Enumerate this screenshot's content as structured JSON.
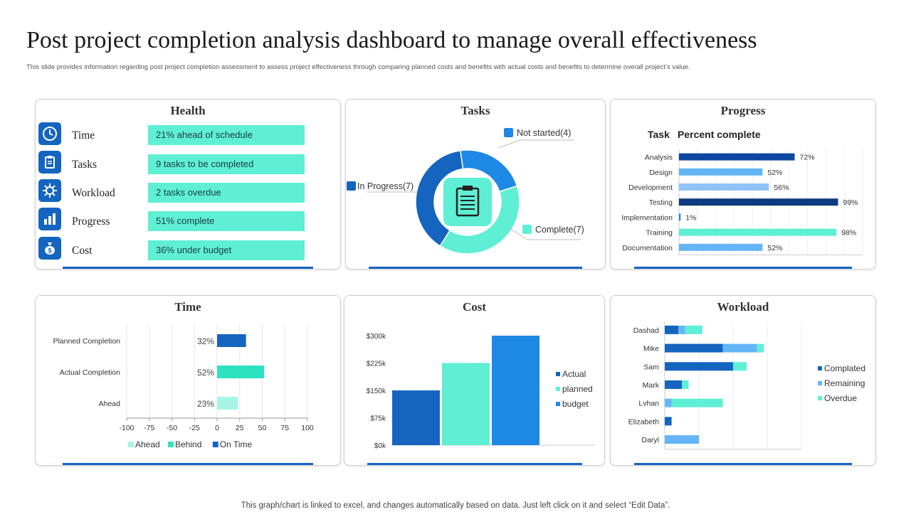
{
  "page": {
    "title": "Post project completion analysis dashboard to manage overall effectiveness",
    "subtitle": "This slide provides information regarding post project completion  assessment to assess project effectiveness through comparing planned costs and benefits with actual costs and benefits  to determine  overall project’s value.",
    "footer": "This graph/chart is linked to excel,  and changes automatically based on data. Just left click on it and select “Edit Data”."
  },
  "health": {
    "title": "Health",
    "items": [
      {
        "label": "Time",
        "value": "21% ahead of schedule",
        "icon": "clock-icon"
      },
      {
        "label": "Tasks",
        "value": "9 tasks to be completed",
        "icon": "clipboard-icon"
      },
      {
        "label": "Workload",
        "value": "2 tasks overdue",
        "icon": "gear-icon"
      },
      {
        "label": "Progress",
        "value": "51% complete",
        "icon": "bar-chart-icon"
      },
      {
        "label": "Cost",
        "value": "36% under  budget",
        "icon": "money-bag-icon"
      }
    ]
  },
  "colors": {
    "dark_blue": "#0d47a1",
    "blue": "#1565c0",
    "mid_blue": "#1e88e5",
    "light_blue": "#64b5f6",
    "teal": "#5eefd4",
    "light_teal": "#a6f5e4",
    "mint": "#2de2c1"
  },
  "chart_data": [
    {
      "id": "tasks",
      "type": "pie",
      "title": "Tasks",
      "categories": [
        "Not started",
        "In Progress",
        "Complete"
      ],
      "values": [
        4,
        7,
        7
      ],
      "labels": [
        "Not started(4)",
        "In Progress(7)",
        "Complete(7)"
      ],
      "colors": [
        "#1e88e5",
        "#1565c0",
        "#5eefd4"
      ]
    },
    {
      "id": "progress",
      "type": "bar",
      "orientation": "horizontal",
      "title": "Progress",
      "header_task": "Task",
      "header_percent": "Percent complete",
      "categories": [
        "Analysis",
        "Design",
        "Development",
        "Testing",
        "Implementation",
        "Training",
        "Documentation"
      ],
      "values": [
        72,
        52,
        56,
        99,
        1,
        98,
        52
      ],
      "value_labels": [
        "72%",
        "52%",
        "56%",
        "99%",
        "1%",
        "98%",
        "52%"
      ],
      "colors": [
        "#0d47a1",
        "#64b5f6",
        "#90c4f8",
        "#0d3a80",
        "#1e88e5",
        "#5eefd4",
        "#64b5f6"
      ],
      "xlim": [
        0,
        100
      ]
    },
    {
      "id": "time",
      "type": "bar",
      "orientation": "horizontal",
      "title": "Time",
      "categories": [
        "Planned Completion",
        "Actual Completion",
        "Ahead"
      ],
      "values": [
        32,
        52,
        23
      ],
      "value_labels": [
        "32%",
        "52%",
        "23%"
      ],
      "series_of_category": [
        "On Time",
        "Behind",
        "Ahead"
      ],
      "xlim": [
        -100,
        100
      ],
      "xticks": [
        "-100",
        "-75",
        "-50",
        "-25",
        "0",
        "25",
        "50",
        "75",
        "100"
      ],
      "xtick_values": [
        -100,
        -75,
        -50,
        -25,
        0,
        25,
        50,
        75,
        100
      ],
      "legend": [
        {
          "name": "Ahead",
          "color": "#a6f5e4"
        },
        {
          "name": "Behind",
          "color": "#2de2c1"
        },
        {
          "name": "On Time",
          "color": "#1565c0"
        }
      ]
    },
    {
      "id": "cost",
      "type": "bar",
      "title": "Cost",
      "categories": [
        "Actual",
        "planned",
        "budget"
      ],
      "values": [
        150,
        225,
        300
      ],
      "colors": [
        "#1565c0",
        "#5eefd4",
        "#1e88e5"
      ],
      "ylim": [
        0,
        300
      ],
      "yticks": [
        "$0k",
        "$75k",
        "$150k",
        "$225k",
        "$300k"
      ],
      "ytick_values": [
        0,
        75,
        150,
        225,
        300
      ],
      "legend": [
        {
          "name": "Actual",
          "color": "#1565c0"
        },
        {
          "name": "planned",
          "color": "#5eefd4"
        },
        {
          "name": "budget",
          "color": "#1e88e5"
        }
      ]
    },
    {
      "id": "workload",
      "type": "bar",
      "orientation": "horizontal",
      "stacked": true,
      "title": "Workload",
      "categories": [
        "Dashad",
        "Mike",
        "Sam",
        "Mark",
        "Lvhan",
        "Elizabeth",
        "Daryl"
      ],
      "series": [
        {
          "name": "Complated",
          "color": "#1565c0",
          "values": [
            2,
            8.5,
            10,
            2.5,
            0,
            1,
            0
          ]
        },
        {
          "name": "Remaining",
          "color": "#64b5f6",
          "values": [
            1,
            5,
            0,
            0,
            1,
            0,
            5
          ]
        },
        {
          "name": "Overdue",
          "color": "#5eefd4",
          "values": [
            2.5,
            1,
            2,
            1,
            7.5,
            0,
            0
          ]
        }
      ],
      "xlim": [
        0,
        20
      ]
    }
  ]
}
